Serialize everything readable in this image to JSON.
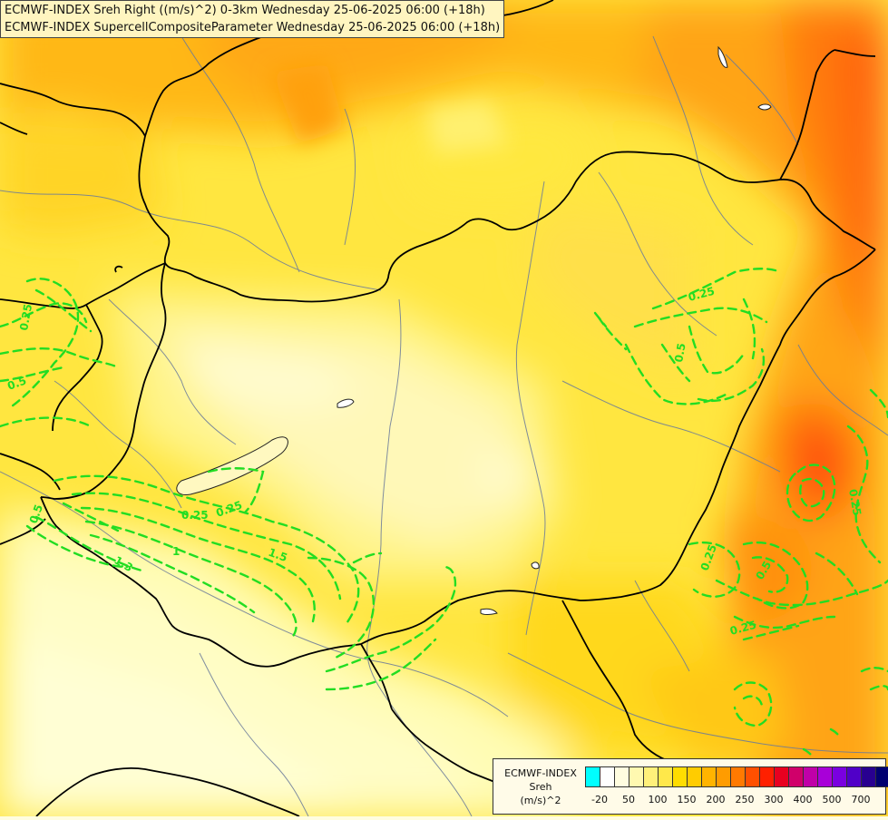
{
  "title": {
    "line1": "ECMWF-INDEX Sreh Right ((m/s)^2) 0-3km Wednesday 25-06-2025 06:00 (+18h)",
    "line2": "ECMWF-INDEX SupercellCompositeParameter Wednesday 25-06-2025 06:00 (+18h)"
  },
  "legend": {
    "model": "ECMWF-INDEX",
    "param": "Sreh",
    "unit": "(m/s)^2",
    "colors": [
      "#00ffff",
      "#ffffff",
      "#fffde0",
      "#fff9b0",
      "#fff07a",
      "#ffe84a",
      "#ffdd00",
      "#ffcc00",
      "#ffb400",
      "#ff9c00",
      "#ff7a00",
      "#ff5000",
      "#ff2000",
      "#e80020",
      "#d0006a",
      "#c000a8",
      "#a800d8",
      "#7a00e0",
      "#5000c8",
      "#280090",
      "#000070"
    ],
    "ticks": [
      "-20",
      "50",
      "100",
      "150",
      "200",
      "250",
      "300",
      "400",
      "500",
      "700"
    ]
  },
  "map": {
    "contour_labels": [
      "0.25",
      "0.5",
      "0.25",
      "0.5",
      "0.5",
      "0.25",
      "0.25",
      "1",
      "1.5",
      "1.3",
      "0.25",
      "0.5",
      "0.25",
      "0.25"
    ],
    "colors": {
      "green_contour": "#22dd22",
      "border": "#000000",
      "river": "#6a7a9a",
      "lake": "#ffffff"
    }
  }
}
